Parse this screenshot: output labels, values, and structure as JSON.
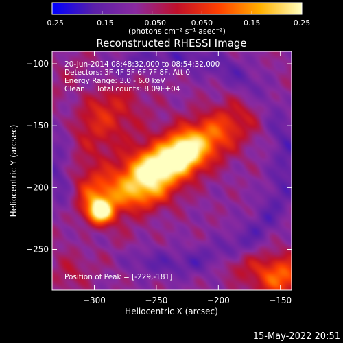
{
  "chart_data": {
    "type": "heatmap",
    "title": "Reconstructed RHESSI Image",
    "xlabel": "Heliocentric X (arcsec)",
    "ylabel": "Heliocentric Y (arcsec)",
    "xlim": [
      -334,
      -141
    ],
    "ylim": [
      -283,
      -90
    ],
    "x_ticks": [
      {
        "value": -300,
        "label": "−300"
      },
      {
        "value": -250,
        "label": "−250"
      },
      {
        "value": -200,
        "label": "−200"
      },
      {
        "value": -150,
        "label": "−150"
      }
    ],
    "y_ticks": [
      {
        "value": -100,
        "label": "−100"
      },
      {
        "value": -150,
        "label": "−150"
      },
      {
        "value": -200,
        "label": "−200"
      },
      {
        "value": -250,
        "label": "−250"
      }
    ],
    "colorbar": {
      "range": [
        -0.25,
        0.25
      ],
      "ticks": [
        {
          "value": -0.25,
          "label": "−0.25"
        },
        {
          "value": -0.15,
          "label": "−0.15"
        },
        {
          "value": -0.05,
          "label": "−0.050"
        },
        {
          "value": 0.05,
          "label": "0.050"
        },
        {
          "value": 0.15,
          "label": "0.15"
        },
        {
          "value": 0.25,
          "label": "0.25"
        }
      ],
      "unit_label": "(photons cm⁻² s⁻¹ asec⁻²)",
      "colors": [
        "#0000ff",
        "#5a1fa8",
        "#8a2aa0",
        "#c0102a",
        "#ff4000",
        "#ffb000",
        "#ffffc0"
      ]
    },
    "annotations": [
      "20-Jun-2014 08:48:32.000 to 08:54:32.000",
      "Detectors: 3F 4F 5F 6F 7F 8F, Att 0",
      "Energy Range: 3.0 - 6.0 keV",
      "Clean     Total counts: 8.09E+04"
    ],
    "peak_label": "Position of Peak = [-229,-181]",
    "peak": {
      "x": -229,
      "y": -181
    },
    "sources": [
      {
        "x": -240,
        "y": -180,
        "sx": 45,
        "sy": 13,
        "angle": 32,
        "amp": 0.31
      },
      {
        "x": -228,
        "y": -171,
        "sx": 9,
        "sy": 10,
        "angle": 0,
        "amp": 0.13
      },
      {
        "x": -252,
        "y": -182,
        "sx": 13,
        "sy": 9,
        "angle": 0,
        "amp": 0.09
      },
      {
        "x": -295,
        "y": -219,
        "sx": 6,
        "sy": 6,
        "angle": 0,
        "amp": 0.29
      },
      {
        "x": -302,
        "y": -207,
        "sx": 12,
        "sy": 18,
        "angle": 0,
        "amp": 0.11
      },
      {
        "x": -297,
        "y": -140,
        "sx": 24,
        "sy": 24,
        "angle": 0,
        "amp": 0.12
      },
      {
        "x": -255,
        "y": -205,
        "sx": 14,
        "sy": 10,
        "angle": 0,
        "amp": 0.08
      },
      {
        "x": -150,
        "y": -272,
        "sx": 16,
        "sy": 12,
        "angle": 0,
        "amp": 0.19
      },
      {
        "x": -285,
        "y": -250,
        "sx": 14,
        "sy": 10,
        "angle": 0,
        "amp": 0.07
      },
      {
        "x": -320,
        "y": -270,
        "sx": 10,
        "sy": 10,
        "angle": 0,
        "amp": 0.06
      },
      {
        "x": -185,
        "y": -262,
        "sx": 12,
        "sy": 8,
        "angle": 0,
        "amp": 0.06
      }
    ]
  },
  "footer": {
    "timestamp": "15-May-2022 20:51"
  }
}
